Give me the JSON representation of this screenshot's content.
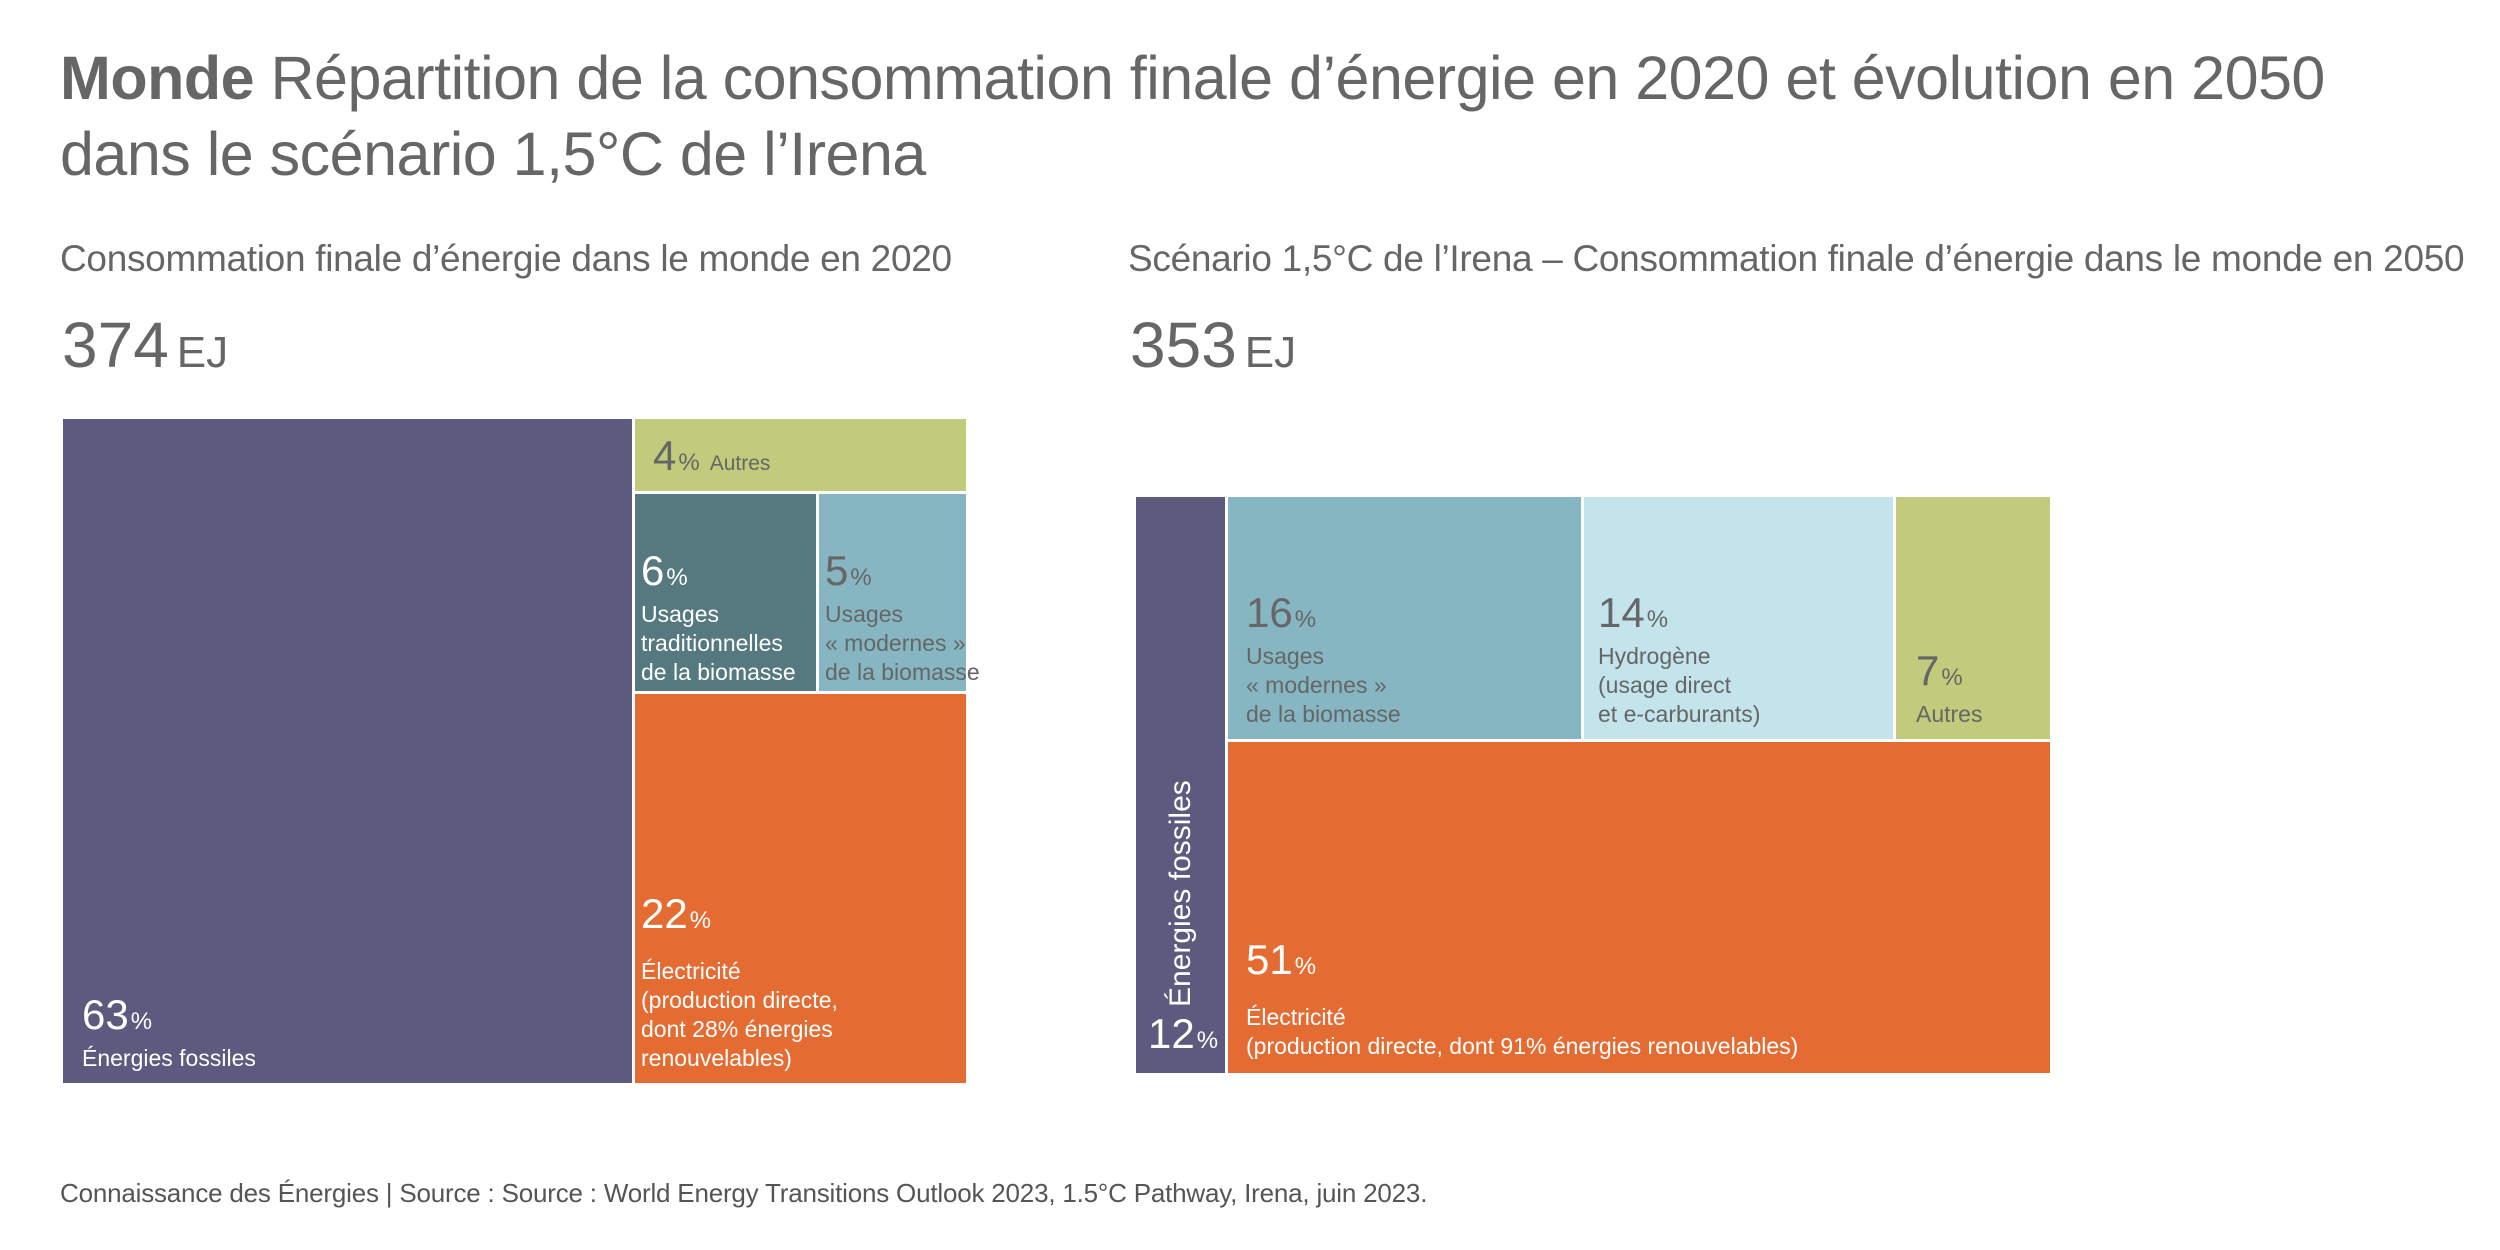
{
  "title": {
    "bold": "Monde",
    "text": " Répartition de la consommation finale d’énergie en 2020 et évolution en 2050 dans le scénario 1,5°C de l’Irena"
  },
  "footer": "Connaissance des Énergies | Source : Source : World Energy Transitions Outlook 2023, 1.5°C Pathway, Irena, juin 2023.",
  "colors": {
    "fossil": "#5c5a7f",
    "electricity": "#e46c33",
    "autres": "#c0cb7b",
    "biomass_traditional": "#55797e",
    "biomass_modern": "#86b6c2",
    "hydrogen": "#c3e4eb",
    "text_dark": "#666666",
    "text_light": "#ffffff"
  },
  "chart_data": [
    {
      "type": "treemap",
      "title": "Consommation finale d’énergie dans le monde en 2020",
      "total_value": "374",
      "total_unit": "EJ",
      "segments": [
        {
          "key": "fossil",
          "value": 63,
          "pct_label": "63",
          "label_lines": [
            "Énergies fossiles"
          ]
        },
        {
          "key": "autres",
          "value": 4,
          "pct_label": "4",
          "label_lines": [
            "Autres"
          ]
        },
        {
          "key": "biomass_traditional",
          "value": 6,
          "pct_label": "6",
          "label_lines": [
            "Usages",
            "traditionnelles",
            "de la biomasse"
          ]
        },
        {
          "key": "biomass_modern",
          "value": 5,
          "pct_label": "5",
          "label_lines": [
            "Usages",
            "« modernes »",
            "de la biomasse"
          ]
        },
        {
          "key": "electricity",
          "value": 22,
          "pct_label": "22",
          "label_lines": [
            "Électricité",
            "(production directe,",
            "dont 28% énergies",
            "renouvelables)"
          ]
        }
      ]
    },
    {
      "type": "treemap",
      "title": "Scénario 1,5°C de l’Irena – Consommation finale d’énergie dans le monde en 2050",
      "total_value": "353",
      "total_unit": "EJ",
      "segments": [
        {
          "key": "fossil",
          "value": 12,
          "pct_label": "12",
          "label_lines": [
            "Énergies fossiles"
          ]
        },
        {
          "key": "biomass_modern",
          "value": 16,
          "pct_label": "16",
          "label_lines": [
            "Usages",
            "« modernes »",
            "de la biomasse"
          ]
        },
        {
          "key": "hydrogen",
          "value": 14,
          "pct_label": "14",
          "label_lines": [
            "Hydrogène",
            "(usage direct",
            "et e-carburants)"
          ]
        },
        {
          "key": "autres",
          "value": 7,
          "pct_label": "7",
          "label_lines": [
            "Autres"
          ]
        },
        {
          "key": "electricity",
          "value": 51,
          "pct_label": "51",
          "label_lines": [
            "Électricité",
            "(production directe, dont 91% énergies renouvelables)"
          ]
        }
      ]
    }
  ],
  "percent_sign": "%"
}
